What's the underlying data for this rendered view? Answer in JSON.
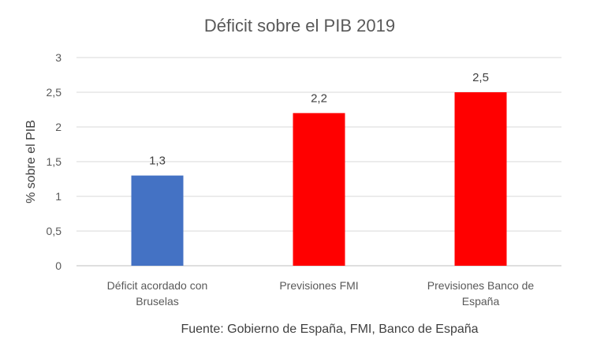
{
  "chart_data": {
    "type": "bar",
    "title": "Déficit sobre el PIB 2019",
    "ylabel": "% sobre el PIB",
    "xlabel": "",
    "ylim": [
      0,
      3
    ],
    "yticks": [
      "0",
      "0,5",
      "1",
      "1,5",
      "2",
      "2,5",
      "3"
    ],
    "ytick_values": [
      0,
      0.5,
      1,
      1.5,
      2,
      2.5,
      3
    ],
    "grid": true,
    "legend": "none",
    "categories": [
      [
        "Déficit acordado con",
        "Bruselas"
      ],
      [
        "Previsiones FMI"
      ],
      [
        "Previsiones Banco de",
        "España"
      ]
    ],
    "values": [
      1.3,
      2.2,
      2.5
    ],
    "data_labels": [
      "1,3",
      "2,2",
      "2,5"
    ],
    "colors": [
      "#4472C4",
      "#FF0000",
      "#FF0000"
    ],
    "source": "Fuente: Gobierno de España, FMI, Banco de España"
  }
}
